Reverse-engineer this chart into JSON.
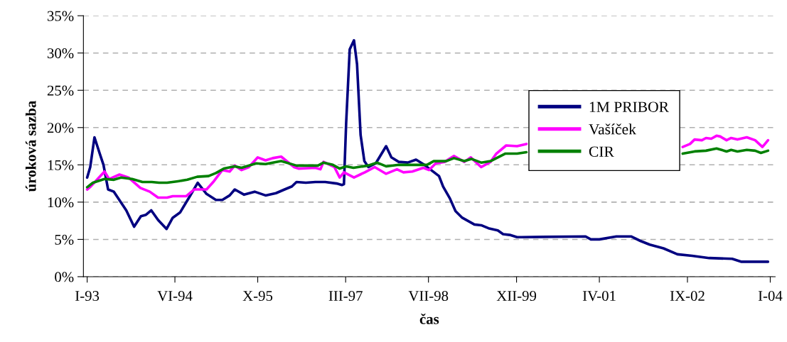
{
  "chart_data": {
    "type": "line",
    "xlabel": "čas",
    "ylabel": "úroková sazba",
    "xlim": [
      "1992-12-10",
      "2004-01-30"
    ],
    "ylim": [
      0,
      35
    ],
    "xticks": [
      {
        "value": "1993-01",
        "label": "I-93"
      },
      {
        "value": "1994-06",
        "label": "VI-94"
      },
      {
        "value": "1995-10",
        "label": "X-95"
      },
      {
        "value": "1997-03",
        "label": "III-97"
      },
      {
        "value": "1998-07",
        "label": "VII-98"
      },
      {
        "value": "1999-12",
        "label": "XII-99"
      },
      {
        "value": "2001-04",
        "label": "IV-01"
      },
      {
        "value": "2002-09",
        "label": "IX-02"
      },
      {
        "value": "2004-01",
        "label": "I-04"
      }
    ],
    "yticks": [
      {
        "value": 0,
        "label": "0%"
      },
      {
        "value": 5,
        "label": "5%"
      },
      {
        "value": 10,
        "label": "10%"
      },
      {
        "value": 15,
        "label": "15%"
      },
      {
        "value": 20,
        "label": "20%"
      },
      {
        "value": 25,
        "label": "25%"
      },
      {
        "value": 30,
        "label": "30%"
      },
      {
        "value": 35,
        "label": "35%"
      }
    ],
    "grid": "y",
    "legend": "right",
    "line_style": "solid",
    "series": [
      {
        "name": "1M PRIBOR",
        "color": "#000080",
        "x": [
          "1993-01-01",
          "1993-01-19",
          "1993-02-13",
          "1993-03-16",
          "1993-04-07",
          "1993-05-04",
          "1993-06-07",
          "1993-08-19",
          "1993-10-04",
          "1993-11-13",
          "1993-12-13",
          "1994-01-13",
          "1994-02-22",
          "1994-04-13",
          "1994-05-19",
          "1994-07-01",
          "1994-08-28",
          "1994-10-13",
          "1994-12-04",
          "1995-01-28",
          "1995-03-07",
          "1995-04-19",
          "1995-05-19",
          "1995-07-13",
          "1995-09-13",
          "1995-11-16",
          "1996-01-16",
          "1996-03-07",
          "1996-04-19",
          "1996-05-16",
          "1996-07-10",
          "1996-09-04",
          "1996-11-01",
          "1997-01-07",
          "1997-02-07",
          "1997-02-19",
          "1997-03-04",
          "1997-03-25",
          "1997-04-19",
          "1997-05-07",
          "1997-05-28",
          "1997-06-19",
          "1997-07-13",
          "1997-08-25",
          "1997-10-25",
          "1997-11-25",
          "1998-01-07",
          "1998-03-01",
          "1998-04-19",
          "1998-06-07",
          "1998-09-01",
          "1998-09-25",
          "1998-11-04",
          "1998-12-07",
          "1999-01-16",
          "1999-03-28",
          "1999-05-07",
          "1999-06-19",
          "1999-08-13",
          "1999-09-13",
          "1999-10-22",
          "1999-12-04",
          "1999-12-28",
          "2001-01-10",
          "2001-02-10",
          "2001-04-01",
          "2001-07-10",
          "2001-10-04",
          "2001-11-28",
          "2002-01-22",
          "2002-04-13",
          "2002-07-04",
          "2002-09-28",
          "2003-01-07",
          "2003-05-22",
          "2003-07-16",
          "2003-12-19"
        ],
        "values": [
          13.3,
          14.7,
          18.7,
          16.5,
          15.0,
          11.7,
          11.4,
          8.9,
          6.7,
          8.1,
          8.3,
          8.9,
          7.6,
          6.4,
          7.9,
          8.6,
          10.8,
          12.6,
          11.1,
          10.3,
          10.3,
          10.9,
          11.7,
          11.0,
          11.4,
          10.9,
          11.2,
          11.7,
          12.1,
          12.7,
          12.6,
          12.7,
          12.7,
          12.5,
          12.3,
          12.4,
          20.6,
          30.5,
          31.7,
          28.5,
          19.0,
          15.5,
          14.7,
          15.2,
          17.5,
          16.0,
          15.4,
          15.3,
          15.7,
          15.0,
          13.5,
          12.1,
          10.5,
          8.8,
          7.9,
          7.0,
          6.9,
          6.5,
          6.2,
          5.7,
          5.6,
          5.3,
          5.3,
          5.4,
          5.0,
          5.0,
          5.4,
          5.4,
          4.8,
          4.3,
          3.8,
          3.0,
          2.8,
          2.5,
          2.4,
          2.0,
          2.0
        ]
      },
      {
        "name": "Vašíček",
        "color": "#ff00ff",
        "x": [
          "1993-01-01",
          "1993-01-22",
          "1993-04-13",
          "1993-05-10",
          "1993-07-10",
          "1993-09-01",
          "1993-11-10",
          "1994-01-04",
          "1994-02-22",
          "1994-04-16",
          "1994-05-19",
          "1994-08-07",
          "1994-09-22",
          "1994-12-04",
          "1995-01-16",
          "1995-03-07",
          "1995-04-19",
          "1995-05-19",
          "1995-06-28",
          "1995-08-10",
          "1995-10-01",
          "1995-11-16",
          "1995-12-28",
          "1996-02-16",
          "1996-05-01",
          "1996-05-28",
          "1996-09-04",
          "1996-10-04",
          "1996-10-22",
          "1996-12-25",
          "1997-01-25",
          "1997-02-19",
          "1997-04-19",
          "1997-06-22",
          "1997-08-19",
          "1997-10-25",
          "1997-12-28",
          "1998-02-04",
          "1998-03-28",
          "1998-06-01",
          "1998-07-04",
          "1998-08-13",
          "1998-10-04",
          "1998-11-28",
          "1999-01-28",
          "1999-03-07",
          "1999-05-07",
          "1999-07-01",
          "1999-08-04",
          "1999-10-01",
          "1999-12-04",
          "2000-01-28",
          "2001-05-01",
          "2002-08-04",
          "2002-09-16",
          "2002-10-13",
          "2002-11-25",
          "2002-12-19",
          "2003-01-19",
          "2003-02-19",
          "2003-03-13",
          "2003-04-19",
          "2003-05-16",
          "2003-06-22",
          "2003-08-16",
          "2003-10-04",
          "2003-11-16",
          "2003-12-19"
        ],
        "values": [
          11.7,
          12.1,
          14.1,
          13.1,
          13.7,
          13.3,
          11.9,
          11.4,
          10.6,
          10.6,
          10.8,
          10.8,
          11.7,
          11.7,
          12.8,
          14.3,
          14.1,
          14.9,
          14.3,
          14.7,
          16.0,
          15.6,
          15.9,
          16.1,
          14.7,
          14.5,
          14.6,
          14.4,
          15.4,
          14.7,
          13.3,
          14.0,
          13.3,
          14.0,
          14.7,
          13.8,
          14.4,
          14.0,
          14.1,
          14.6,
          14.3,
          15.2,
          15.4,
          16.2,
          15.4,
          16.0,
          14.7,
          15.4,
          16.5,
          17.6,
          17.5,
          17.8,
          null,
          17.4,
          17.8,
          18.4,
          18.3,
          18.6,
          18.5,
          18.9,
          18.8,
          18.3,
          18.6,
          18.4,
          18.7,
          18.3,
          17.4,
          18.3
        ]
      },
      {
        "name": "CIR",
        "color": "#008000",
        "x": [
          "1993-01-01",
          "1993-02-04",
          "1993-04-13",
          "1993-06-07",
          "1993-07-19",
          "1993-09-22",
          "1993-11-22",
          "1994-01-16",
          "1994-02-28",
          "1994-04-16",
          "1994-06-19",
          "1994-08-13",
          "1994-10-10",
          "1994-12-16",
          "1995-01-28",
          "1995-03-16",
          "1995-05-19",
          "1995-06-28",
          "1995-09-22",
          "1995-11-16",
          "1995-12-28",
          "1996-02-16",
          "1996-05-16",
          "1996-08-10",
          "1996-09-19",
          "1996-10-22",
          "1996-12-16",
          "1997-01-25",
          "1997-03-04",
          "1997-04-16",
          "1997-07-10",
          "1997-09-01",
          "1997-10-25",
          "1998-01-07",
          "1998-03-28",
          "1998-06-22",
          "1998-08-01",
          "1998-10-13",
          "1998-11-28",
          "1999-01-28",
          "1999-03-10",
          "1999-05-07",
          "1999-07-01",
          "1999-09-25",
          "1999-12-04",
          "2000-01-28",
          "2001-05-01",
          "2002-08-04",
          "2002-10-13",
          "2002-12-19",
          "2003-02-19",
          "2003-04-19",
          "2003-05-16",
          "2003-06-22",
          "2003-08-16",
          "2003-10-04",
          "2003-11-07",
          "2003-12-19"
        ],
        "values": [
          12.0,
          12.6,
          13.1,
          13.0,
          13.3,
          13.1,
          12.7,
          12.7,
          12.6,
          12.6,
          12.8,
          13.0,
          13.4,
          13.5,
          13.9,
          14.5,
          14.8,
          14.6,
          15.2,
          15.1,
          15.3,
          15.5,
          14.9,
          14.9,
          14.9,
          15.3,
          15.0,
          14.5,
          14.8,
          14.6,
          14.9,
          15.3,
          14.8,
          15.0,
          15.0,
          15.0,
          15.5,
          15.5,
          15.9,
          15.5,
          15.8,
          15.3,
          15.5,
          16.5,
          16.5,
          16.7,
          null,
          16.5,
          16.8,
          16.9,
          17.2,
          16.8,
          17.0,
          16.8,
          17.0,
          16.9,
          16.6,
          16.9
        ]
      }
    ]
  }
}
